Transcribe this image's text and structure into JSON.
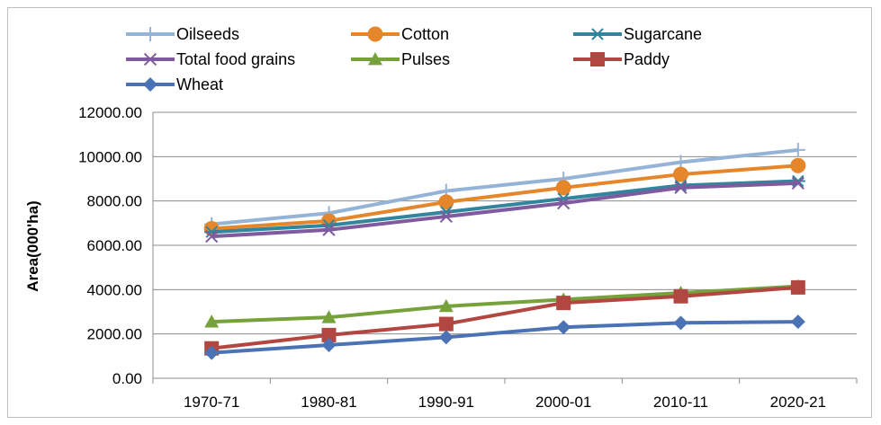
{
  "chart_data": {
    "type": "line",
    "title": "",
    "xlabel": "",
    "ylabel": "Area(000'ha)",
    "categories": [
      "1970-71",
      "1980-81",
      "1990-91",
      "2000-01",
      "2010-11",
      "2020-21"
    ],
    "ylim": [
      0,
      12000
    ],
    "yticks": [
      "0.00",
      "2000.00",
      "4000.00",
      "6000.00",
      "8000.00",
      "10000.00",
      "12000.00"
    ],
    "grid": true,
    "legend_position": "top",
    "series": [
      {
        "name": "Oilseeds",
        "color": "#95b3d7",
        "marker": "plus",
        "values": [
          6950,
          7450,
          8450,
          9000,
          9750,
          10300
        ]
      },
      {
        "name": "Cotton",
        "color": "#e6862a",
        "marker": "circle",
        "values": [
          6750,
          7100,
          7950,
          8600,
          9200,
          9600
        ]
      },
      {
        "name": "Sugarcane",
        "color": "#31859c",
        "marker": "asterisk",
        "values": [
          6600,
          6900,
          7500,
          8100,
          8700,
          8900
        ]
      },
      {
        "name": "Total food grains",
        "color": "#7f5a9e",
        "marker": "x",
        "values": [
          6400,
          6700,
          7300,
          7900,
          8600,
          8800
        ]
      },
      {
        "name": "Pulses",
        "color": "#77a13b",
        "marker": "triangle",
        "values": [
          2550,
          2750,
          3250,
          3550,
          3850,
          4150
        ]
      },
      {
        "name": "Paddy",
        "color": "#b24742",
        "marker": "square",
        "values": [
          1350,
          1950,
          2450,
          3400,
          3700,
          4100
        ]
      },
      {
        "name": "Wheat",
        "color": "#4a72b5",
        "marker": "diamond",
        "values": [
          1150,
          1500,
          1850,
          2300,
          2500,
          2550
        ]
      }
    ]
  }
}
